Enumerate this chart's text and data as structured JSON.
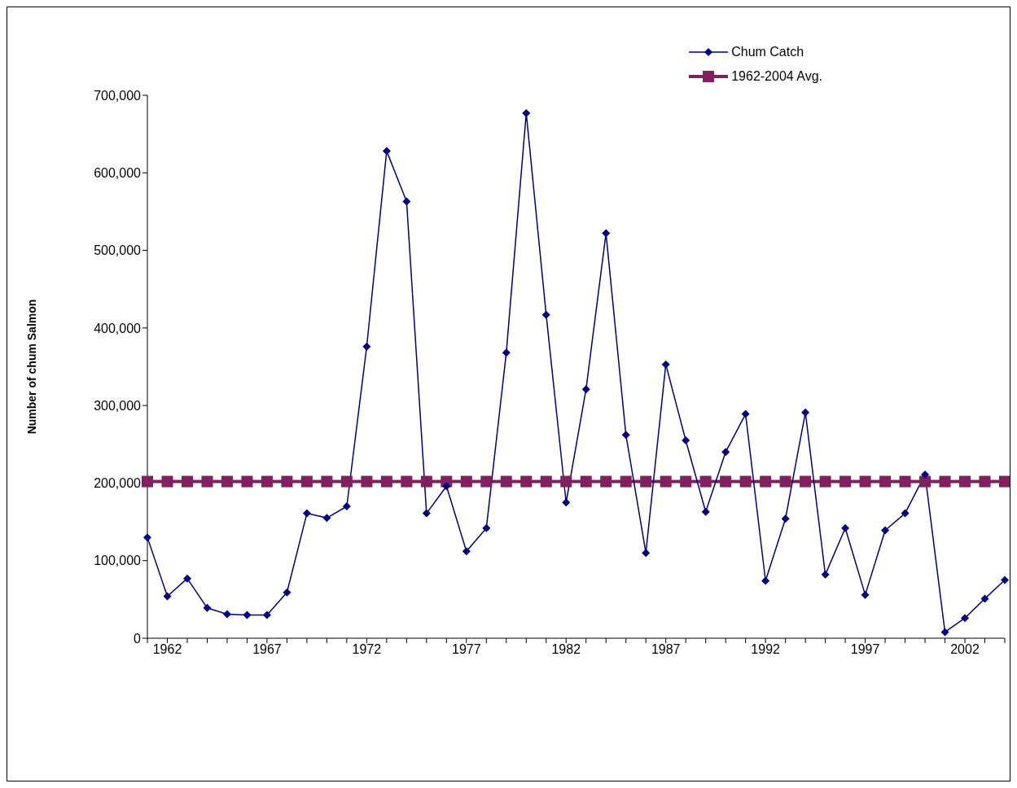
{
  "chart_data": {
    "type": "line",
    "ylabel": "Number of chum Salmon",
    "categories": [
      null,
      "1962",
      null,
      null,
      null,
      null,
      "1967",
      null,
      null,
      null,
      null,
      "1972",
      null,
      null,
      null,
      null,
      "1977",
      null,
      null,
      null,
      null,
      "1982",
      null,
      null,
      null,
      null,
      "1987",
      null,
      null,
      null,
      null,
      "1992",
      null,
      null,
      null,
      null,
      "1997",
      null,
      null,
      null,
      null,
      "2002",
      null,
      null
    ],
    "series": [
      {
        "name": "Chum Catch",
        "color": "#000080",
        "marker": "diamond",
        "values": [
          130000,
          54000,
          77000,
          39000,
          31000,
          30000,
          30000,
          59000,
          161000,
          155000,
          170000,
          376000,
          628000,
          563000,
          161000,
          196000,
          112000,
          142000,
          368000,
          677000,
          417000,
          175000,
          321000,
          522000,
          262000,
          110000,
          353000,
          255000,
          163000,
          240000,
          289000,
          74000,
          154000,
          291000,
          82000,
          142000,
          56000,
          139000,
          161000,
          211000,
          8000,
          26000,
          51000,
          75000
        ]
      },
      {
        "name": "1962-2004 Avg.",
        "color": "#80205f",
        "marker": "square",
        "values": [
          202000,
          202000,
          202000,
          202000,
          202000,
          202000,
          202000,
          202000,
          202000,
          202000,
          202000,
          202000,
          202000,
          202000,
          202000,
          202000,
          202000,
          202000,
          202000,
          202000,
          202000,
          202000,
          202000,
          202000,
          202000,
          202000,
          202000,
          202000,
          202000,
          202000,
          202000,
          202000,
          202000,
          202000,
          202000,
          202000,
          202000,
          202000,
          202000,
          202000,
          202000,
          202000,
          202000,
          202000
        ]
      }
    ],
    "ylim": [
      0,
      700000
    ],
    "yticks": [
      0,
      {
        "value": 100000,
        "label": "100,000"
      },
      {
        "value": 200000,
        "label": "200,000"
      },
      {
        "value": 300000,
        "label": "300,000"
      },
      {
        "value": 400000,
        "label": "400,000"
      },
      {
        "value": 500000,
        "label": "500,000"
      },
      {
        "value": 600000,
        "label": "600,000"
      },
      {
        "value": 700000,
        "label": "700,000"
      }
    ],
    "grid": false,
    "legend": "top right",
    "line_style": "solid"
  }
}
